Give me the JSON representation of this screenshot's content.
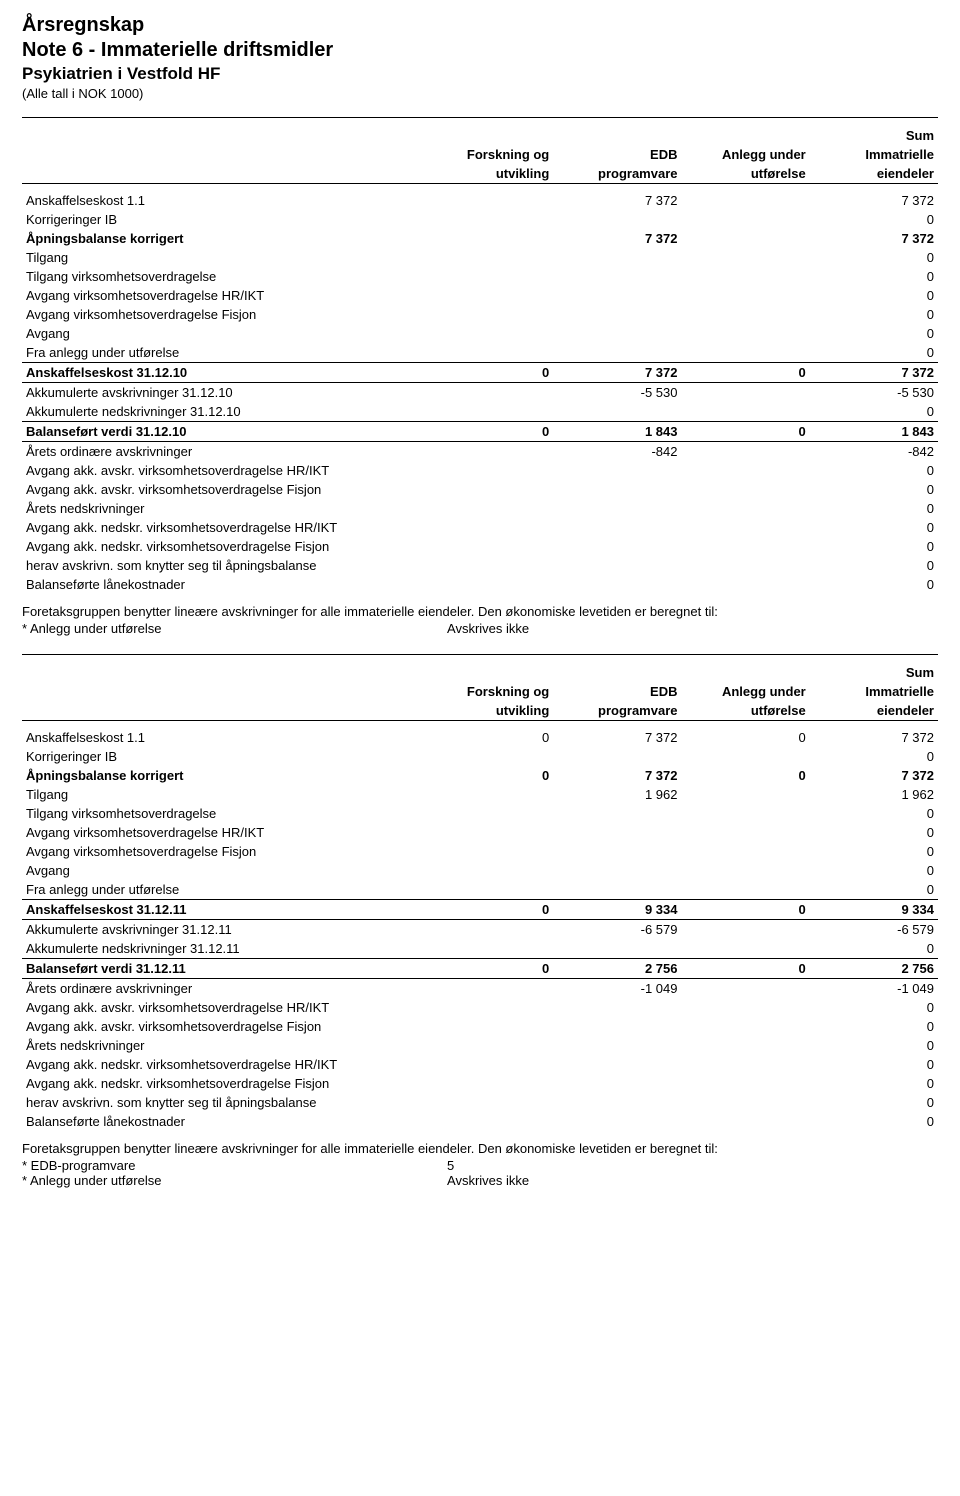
{
  "title1": "Årsregnskap",
  "title2": "Note 6 - Immaterielle driftsmidler",
  "title3": "Psykiatrien i Vestfold HF",
  "subtitle": "(Alle tall i NOK 1000)",
  "columns": {
    "label": "",
    "c1a": "Forskning og",
    "c1b": "utvikling",
    "c2a": "EDB",
    "c2b": "programvare",
    "c3a": "Anlegg under",
    "c3b": "utførelse",
    "c4a": "Immatrielle",
    "c4b": "eiendeler",
    "sum": "Sum"
  },
  "para1": "Foretaksgruppen benytter lineære avskrivninger for alle immaterielle eiendeler. Den økonomiske levetiden er beregnet til:",
  "footnotes1": [
    {
      "label": "* Anlegg under utførelse",
      "val": "Avskrives ikke"
    }
  ],
  "para2": "Foretaksgruppen benytter lineære avskrivninger for alle immaterielle eiendeler. Den økonomiske levetiden er beregnet til:",
  "footnotes2": [
    {
      "label": "* EDB-programvare",
      "val": "5"
    },
    {
      "label": "* Anlegg under utførelse",
      "val": "Avskrives ikke"
    }
  ],
  "table1": [
    {
      "label": "Anskaffelseskost 1.1",
      "c1": "",
      "c2": "7 372",
      "c3": "",
      "c4": "7 372",
      "bold": false
    },
    {
      "label": "Korrigeringer IB",
      "c1": "",
      "c2": "",
      "c3": "",
      "c4": "0",
      "bold": false
    },
    {
      "label": "Åpningsbalanse korrigert",
      "c1": "",
      "c2": "7 372",
      "c3": "",
      "c4": "7 372",
      "bold": true
    },
    {
      "label": "Tilgang",
      "c1": "",
      "c2": "",
      "c3": "",
      "c4": "0",
      "bold": false
    },
    {
      "label": "Tilgang virksomhetsoverdragelse",
      "c1": "",
      "c2": "",
      "c3": "",
      "c4": "0",
      "bold": false
    },
    {
      "label": "Avgang virksomhetsoverdragelse HR/IKT",
      "c1": "",
      "c2": "",
      "c3": "",
      "c4": "0",
      "bold": false
    },
    {
      "label": "Avgang virksomhetsoverdragelse Fisjon",
      "c1": "",
      "c2": "",
      "c3": "",
      "c4": "0",
      "bold": false
    },
    {
      "label": "Avgang",
      "c1": "",
      "c2": "",
      "c3": "",
      "c4": "0",
      "bold": false
    },
    {
      "label": "Fra anlegg under utførelse",
      "c1": "",
      "c2": "",
      "c3": "",
      "c4": "0",
      "bold": false
    },
    {
      "label": "Anskaffelseskost 31.12.10",
      "c1": "0",
      "c2": "7 372",
      "c3": "0",
      "c4": "7 372",
      "bold": true,
      "hr": "both"
    },
    {
      "label": "Akkumulerte avskrivninger 31.12.10",
      "c1": "",
      "c2": "-5 530",
      "c3": "",
      "c4": "-5 530",
      "bold": false
    },
    {
      "label": "Akkumulerte nedskrivninger 31.12.10",
      "c1": "",
      "c2": "",
      "c3": "",
      "c4": "0",
      "bold": false
    },
    {
      "label": "Balanseført verdi 31.12.10",
      "c1": "0",
      "c2": "1 843",
      "c3": "0",
      "c4": "1 843",
      "bold": true,
      "hr": "both"
    },
    {
      "label": "Årets ordinære avskrivninger",
      "c1": "",
      "c2": "-842",
      "c3": "",
      "c4": "-842",
      "bold": false
    },
    {
      "label": "Avgang akk. avskr. virksomhetsoverdragelse HR/IKT",
      "c1": "",
      "c2": "",
      "c3": "",
      "c4": "0",
      "bold": false
    },
    {
      "label": "Avgang akk. avskr. virksomhetsoverdragelse Fisjon",
      "c1": "",
      "c2": "",
      "c3": "",
      "c4": "0",
      "bold": false
    },
    {
      "label": "Årets nedskrivninger",
      "c1": "",
      "c2": "",
      "c3": "",
      "c4": "0",
      "bold": false
    },
    {
      "label": "Avgang akk. nedskr. virksomhetsoverdragelse HR/IKT",
      "c1": "",
      "c2": "",
      "c3": "",
      "c4": "0",
      "bold": false
    },
    {
      "label": "Avgang akk. nedskr. virksomhetsoverdragelse Fisjon",
      "c1": "",
      "c2": "",
      "c3": "",
      "c4": "0",
      "bold": false
    },
    {
      "label": "herav avskrivn. som knytter seg til åpningsbalanse",
      "c1": "",
      "c2": "",
      "c3": "",
      "c4": "0",
      "bold": false
    },
    {
      "label": "Balanseførte lånekostnader",
      "c1": "",
      "c2": "",
      "c3": "",
      "c4": "0",
      "bold": false
    }
  ],
  "table2": [
    {
      "label": "Anskaffelseskost 1.1",
      "c1": "0",
      "c2": "7 372",
      "c3": "0",
      "c4": "7 372",
      "bold": false
    },
    {
      "label": "Korrigeringer IB",
      "c1": "",
      "c2": "",
      "c3": "",
      "c4": "0",
      "bold": false
    },
    {
      "label": "Åpningsbalanse korrigert",
      "c1": "0",
      "c2": "7 372",
      "c3": "0",
      "c4": "7 372",
      "bold": true
    },
    {
      "label": "Tilgang",
      "c1": "",
      "c2": "1 962",
      "c3": "",
      "c4": "1 962",
      "bold": false
    },
    {
      "label": "Tilgang virksomhetsoverdragelse",
      "c1": "",
      "c2": "",
      "c3": "",
      "c4": "0",
      "bold": false
    },
    {
      "label": "Avgang virksomhetsoverdragelse HR/IKT",
      "c1": "",
      "c2": "",
      "c3": "",
      "c4": "0",
      "bold": false
    },
    {
      "label": "Avgang virksomhetsoverdragelse Fisjon",
      "c1": "",
      "c2": "",
      "c3": "",
      "c4": "0",
      "bold": false
    },
    {
      "label": "Avgang",
      "c1": "",
      "c2": "",
      "c3": "",
      "c4": "0",
      "bold": false
    },
    {
      "label": "Fra anlegg under utførelse",
      "c1": "",
      "c2": "",
      "c3": "",
      "c4": "0",
      "bold": false
    },
    {
      "label": "Anskaffelseskost 31.12.11",
      "c1": "0",
      "c2": "9 334",
      "c3": "0",
      "c4": "9 334",
      "bold": true,
      "hr": "both"
    },
    {
      "label": "Akkumulerte avskrivninger 31.12.11",
      "c1": "",
      "c2": "-6 579",
      "c3": "",
      "c4": "-6 579",
      "bold": false
    },
    {
      "label": "Akkumulerte nedskrivninger 31.12.11",
      "c1": "",
      "c2": "",
      "c3": "",
      "c4": "0",
      "bold": false
    },
    {
      "label": "Balanseført verdi 31.12.11",
      "c1": "0",
      "c2": "2 756",
      "c3": "0",
      "c4": "2 756",
      "bold": true,
      "hr": "both"
    },
    {
      "label": "Årets ordinære avskrivninger",
      "c1": "",
      "c2": "-1 049",
      "c3": "",
      "c4": "-1 049",
      "bold": false
    },
    {
      "label": "Avgang akk. avskr. virksomhetsoverdragelse HR/IKT",
      "c1": "",
      "c2": "",
      "c3": "",
      "c4": "0",
      "bold": false
    },
    {
      "label": "Avgang akk. avskr. virksomhetsoverdragelse Fisjon",
      "c1": "",
      "c2": "",
      "c3": "",
      "c4": "0",
      "bold": false
    },
    {
      "label": "Årets nedskrivninger",
      "c1": "",
      "c2": "",
      "c3": "",
      "c4": "0",
      "bold": false
    },
    {
      "label": "Avgang akk. nedskr. virksomhetsoverdragelse HR/IKT",
      "c1": "",
      "c2": "",
      "c3": "",
      "c4": "0",
      "bold": false
    },
    {
      "label": "Avgang akk. nedskr. virksomhetsoverdragelse Fisjon",
      "c1": "",
      "c2": "",
      "c3": "",
      "c4": "0",
      "bold": false
    },
    {
      "label": "herav avskrivn. som knytter seg til åpningsbalanse",
      "c1": "",
      "c2": "",
      "c3": "",
      "c4": "0",
      "bold": false
    },
    {
      "label": "Balanseførte lånekostnader",
      "c1": "",
      "c2": "",
      "c3": "",
      "c4": "0",
      "bold": false
    }
  ]
}
